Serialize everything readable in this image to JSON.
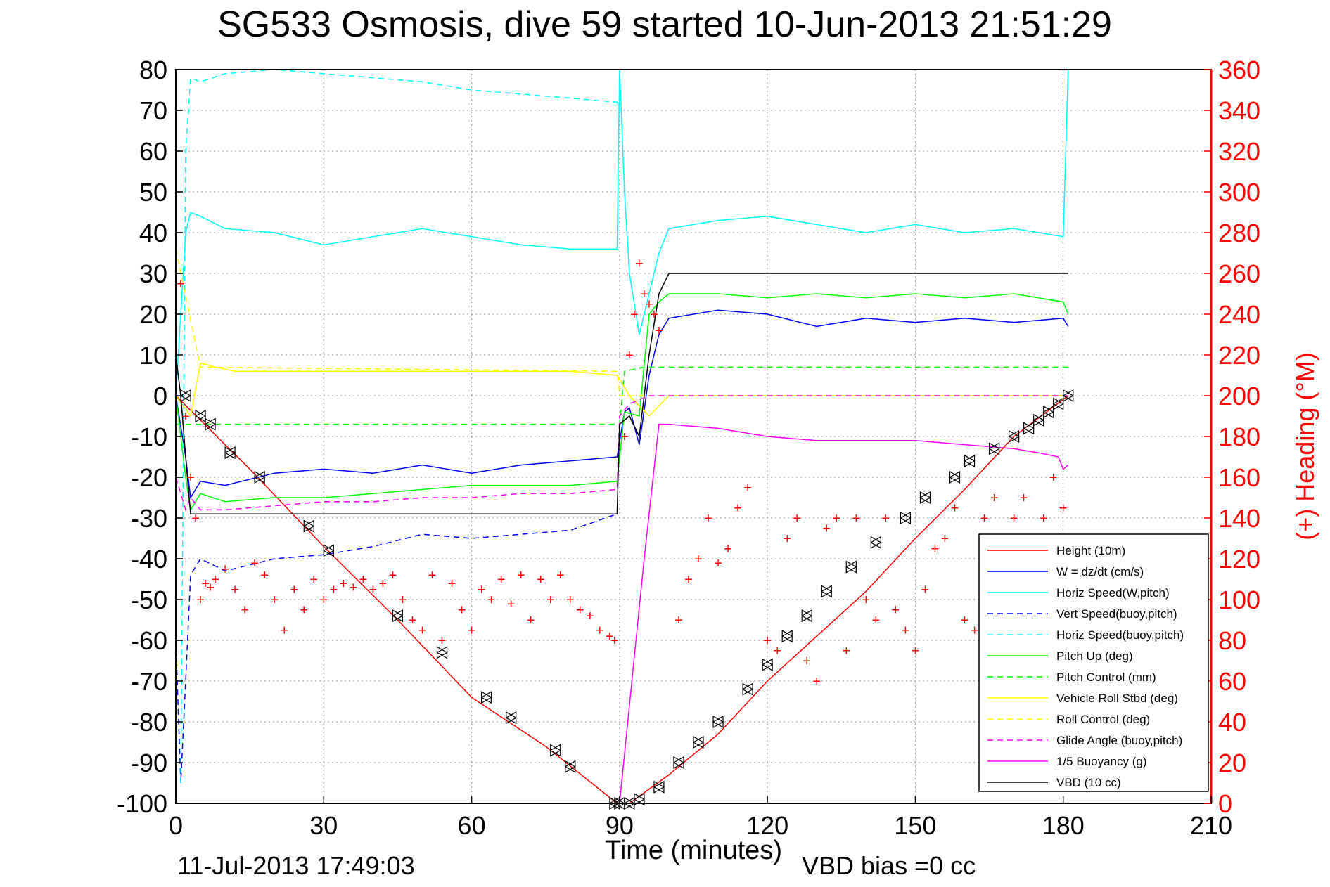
{
  "chart_data": {
    "type": "line",
    "title": "SG533 Osmosis, dive 59 started 10-Jun-2013 21:51:29",
    "xlabel": "Time (minutes)",
    "ylabel_right": "(+) Heading (°M)",
    "footer_left": "11-Jul-2013 17:49:03",
    "footer_right": "VBD bias =0 cc",
    "xlim": [
      0,
      210
    ],
    "ylim": [
      -100,
      80
    ],
    "y2lim": [
      0,
      360
    ],
    "xticks": [
      "0",
      "30",
      "60",
      "90",
      "120",
      "150",
      "180",
      "210"
    ],
    "yticks": [
      "80",
      "70",
      "60",
      "50",
      "40",
      "30",
      "20",
      "10",
      "0",
      "-10",
      "-20",
      "-30",
      "-40",
      "-50",
      "-60",
      "-70",
      "-80",
      "-90",
      "-100"
    ],
    "y2ticks": [
      "360",
      "340",
      "320",
      "300",
      "280",
      "260",
      "240",
      "220",
      "200",
      "180",
      "160",
      "140",
      "120",
      "100",
      "80",
      "60",
      "40",
      "20",
      "0"
    ],
    "grid": true,
    "legend_position": "bottom-right",
    "colors": {
      "height": "#ff0000",
      "w": "#0000ff",
      "horiz": "#00ffff",
      "pitch": "#00ff00",
      "roll": "#ffff00",
      "glide": "#ff00ff",
      "vbd": "#000000",
      "heading_axis": "#ff0000"
    },
    "series": [
      {
        "name": "Height (10m)",
        "style": "solid",
        "color": "#ff0000",
        "x": [
          0,
          15,
          30,
          45,
          60,
          75,
          89.5,
          92,
          100,
          110,
          120,
          130,
          140,
          150,
          160,
          170,
          181
        ],
        "y": [
          0,
          -18,
          -37,
          -55,
          -74,
          -86,
          -100,
          -100,
          -93,
          -83,
          -70,
          -59,
          -48,
          -35,
          -23,
          -10,
          0
        ]
      },
      {
        "name": "W = dz/dt (cm/s)",
        "style": "solid",
        "color": "#0000ff",
        "x": [
          0,
          2,
          3,
          5,
          10,
          20,
          30,
          40,
          50,
          60,
          70,
          80,
          89.5,
          91,
          92,
          94,
          96,
          98,
          100,
          110,
          120,
          130,
          140,
          150,
          160,
          170,
          180,
          181
        ],
        "y": [
          0,
          -15,
          -25,
          -21,
          -22,
          -19,
          -18,
          -19,
          -17,
          -19,
          -17,
          -16,
          -15,
          -4,
          -3,
          -12,
          5,
          15,
          19,
          21,
          20,
          17,
          19,
          18,
          19,
          18,
          19,
          17
        ]
      },
      {
        "name": "Horiz Speed(W,pitch)",
        "style": "solid",
        "color": "#00ffff",
        "x": [
          0,
          2,
          3,
          5,
          10,
          20,
          30,
          40,
          50,
          60,
          70,
          80,
          89.5,
          90,
          91,
          92,
          94,
          96,
          98,
          100,
          110,
          120,
          130,
          140,
          150,
          160,
          170,
          180,
          181
        ],
        "y": [
          0,
          40,
          45,
          44,
          41,
          40,
          37,
          39,
          41,
          39,
          37,
          36,
          36,
          80,
          50,
          30,
          15,
          25,
          35,
          41,
          43,
          44,
          42,
          40,
          42,
          40,
          41,
          39,
          80
        ]
      },
      {
        "name": "Vert Speed(buoy,pitch)",
        "style": "dashed",
        "color": "#0000ff",
        "x": [
          0,
          1,
          2,
          3,
          5,
          10,
          20,
          30,
          40,
          50,
          60,
          70,
          80,
          89.5
        ],
        "y": [
          -60,
          -95,
          -70,
          -44,
          -40,
          -43,
          -40,
          -39,
          -37,
          -34,
          -35,
          -34,
          -33,
          -29
        ]
      },
      {
        "name": "Horiz Speed(buoy,pitch)",
        "style": "dashed",
        "color": "#00ffff",
        "x": [
          1,
          2,
          3,
          5,
          10,
          20,
          30,
          40,
          50,
          60,
          70,
          80,
          89.5,
          90
        ],
        "y": [
          -95,
          60,
          78,
          77,
          79,
          80,
          79,
          78,
          77,
          75,
          74,
          73,
          72,
          70
        ]
      },
      {
        "name": "Pitch Up (deg)",
        "style": "solid",
        "color": "#00ff00",
        "x": [
          0,
          2,
          3,
          5,
          10,
          20,
          30,
          40,
          50,
          60,
          70,
          80,
          89.5,
          91,
          94,
          96,
          98,
          100,
          110,
          120,
          130,
          140,
          150,
          160,
          170,
          180,
          181
        ],
        "y": [
          0,
          -20,
          -28,
          -24,
          -26,
          -25,
          -25,
          -24,
          -23,
          -22,
          -22,
          -22,
          -21,
          -4,
          -5,
          20,
          23,
          25,
          25,
          24,
          25,
          24,
          25,
          24,
          25,
          23,
          20
        ]
      },
      {
        "name": "Pitch Control (mm)",
        "style": "dashed",
        "color": "#00ff00",
        "x": [
          0,
          5,
          90,
          91,
          95,
          100,
          150,
          181
        ],
        "y": [
          -7,
          -7,
          -7,
          6,
          7,
          7,
          7,
          7
        ]
      },
      {
        "name": "Vehicle Roll Stbd (deg)",
        "style": "solid",
        "color": "#ffff00",
        "x": [
          0,
          3,
          5,
          8,
          12,
          17,
          28,
          31,
          45,
          50,
          60,
          70,
          80,
          89.5,
          92,
          96,
          100,
          120,
          150,
          181
        ],
        "y": [
          0,
          -5,
          8,
          7,
          6,
          6,
          6,
          6,
          6,
          6,
          6,
          6,
          6,
          5,
          0,
          -5,
          0,
          0,
          0,
          0
        ]
      },
      {
        "name": "Roll Control (deg)",
        "style": "dashed",
        "color": "#ffff00",
        "x": [
          0,
          5,
          89.5,
          90,
          181
        ],
        "y": [
          36,
          7,
          6,
          0,
          0
        ]
      },
      {
        "name": "Glide Angle (buoy,pitch)",
        "style": "dashed",
        "color": "#ff00ff",
        "x": [
          0,
          2,
          3,
          5,
          10,
          20,
          30,
          40,
          50,
          60,
          70,
          80,
          89.5,
          90,
          92,
          96,
          100,
          150,
          181
        ],
        "y": [
          -20,
          -28,
          -25,
          -28,
          -28,
          -27,
          -26,
          -26,
          -25,
          -25,
          -24,
          -24,
          -23,
          -5,
          -2,
          0,
          0,
          0,
          0
        ]
      },
      {
        "name": "1/5 Buoyancy (g)",
        "style": "solid",
        "color": "#ff00ff",
        "x": [
          90,
          95,
          98,
          100,
          110,
          120,
          130,
          140,
          150,
          160,
          170,
          175,
          179,
          180,
          181
        ],
        "y": [
          -100,
          -40,
          -7,
          -7,
          -8,
          -10,
          -11,
          -11,
          -11,
          -12,
          -13,
          -14,
          -15,
          -18,
          -17
        ]
      },
      {
        "name": "VBD (10 cc)",
        "style": "solid",
        "color": "#000000",
        "x": [
          0,
          1,
          2,
          3,
          5,
          89.5,
          90,
          92,
          94,
          96,
          98,
          100,
          150,
          181
        ],
        "y": [
          10,
          0,
          -15,
          -29,
          -29,
          -29,
          -7,
          -5,
          -10,
          10,
          25,
          30,
          30,
          30
        ]
      }
    ],
    "heading_plus": {
      "axis": "right",
      "marker": "+",
      "color": "#ff0000",
      "x": [
        1,
        2,
        3,
        4,
        5,
        6,
        7,
        8,
        10,
        12,
        14,
        16,
        18,
        20,
        22,
        24,
        26,
        28,
        30,
        32,
        34,
        36,
        38,
        40,
        42,
        44,
        46,
        48,
        50,
        52,
        54,
        56,
        58,
        60,
        62,
        64,
        66,
        68,
        70,
        72,
        74,
        76,
        78,
        80,
        82,
        84,
        86,
        88,
        89,
        91,
        92,
        93,
        94,
        95,
        96,
        97,
        98,
        102,
        104,
        106,
        108,
        110,
        112,
        114,
        116,
        120,
        122,
        124,
        126,
        128,
        130,
        132,
        134,
        136,
        138,
        140,
        142,
        144,
        146,
        148,
        150,
        152,
        154,
        156,
        158,
        160,
        162,
        164,
        166,
        168,
        170,
        172,
        174,
        176,
        178,
        180
      ],
      "y": [
        255,
        190,
        160,
        140,
        100,
        108,
        106,
        110,
        115,
        105,
        95,
        118,
        112,
        100,
        85,
        105,
        95,
        110,
        100,
        105,
        108,
        106,
        110,
        105,
        108,
        112,
        100,
        90,
        85,
        112,
        80,
        108,
        95,
        85,
        105,
        100,
        110,
        98,
        112,
        90,
        110,
        100,
        112,
        100,
        95,
        92,
        85,
        82,
        80,
        180,
        220,
        240,
        265,
        250,
        245,
        240,
        232,
        90,
        110,
        120,
        140,
        118,
        125,
        145,
        155,
        80,
        75,
        130,
        140,
        70,
        60,
        135,
        140,
        75,
        140,
        100,
        90,
        140,
        95,
        85,
        75,
        105,
        125,
        130,
        145,
        90,
        85,
        140,
        150,
        80,
        140,
        150,
        100,
        140,
        160,
        145
      ]
    },
    "height_markers": {
      "x": [
        2,
        5,
        7,
        11,
        17,
        27,
        31,
        45,
        54,
        63,
        68,
        77,
        80,
        89,
        90,
        92,
        94,
        98,
        102,
        106,
        110,
        116,
        120,
        124,
        128,
        132,
        137,
        142,
        148,
        152,
        158,
        161,
        166,
        170,
        173,
        175,
        177,
        179,
        181
      ],
      "y": [
        0,
        -5,
        -7,
        -14,
        -20,
        -32,
        -38,
        -54,
        -63,
        -74,
        -79,
        -87,
        -91,
        -100,
        -100,
        -100,
        -99,
        -96,
        -90,
        -85,
        -80,
        -72,
        -66,
        -59,
        -54,
        -48,
        -42,
        -36,
        -30,
        -25,
        -20,
        -16,
        -13,
        -10,
        -8,
        -6,
        -4,
        -2,
        0
      ]
    },
    "legend": [
      {
        "label": "Height (10m)",
        "color": "#ff0000",
        "style": "solid"
      },
      {
        "label": "W = dz/dt (cm/s)",
        "color": "#0000ff",
        "style": "solid"
      },
      {
        "label": "Horiz Speed(W,pitch)",
        "color": "#00ffff",
        "style": "solid"
      },
      {
        "label": "Vert Speed(buoy,pitch)",
        "color": "#0000ff",
        "style": "dashed"
      },
      {
        "label": "Horiz Speed(buoy,pitch)",
        "color": "#00ffff",
        "style": "dashed"
      },
      {
        "label": "Pitch Up (deg)",
        "color": "#00ff00",
        "style": "solid"
      },
      {
        "label": "Pitch Control (mm)",
        "color": "#00ff00",
        "style": "dashed"
      },
      {
        "label": "Vehicle Roll Stbd (deg)",
        "color": "#ffff00",
        "style": "solid"
      },
      {
        "label": "Roll Control (deg)",
        "color": "#ffff00",
        "style": "dashed"
      },
      {
        "label": "Glide Angle (buoy,pitch)",
        "color": "#ff00ff",
        "style": "dashed"
      },
      {
        "label": "1/5 Buoyancy (g)",
        "color": "#ff00ff",
        "style": "solid"
      },
      {
        "label": "VBD (10 cc)",
        "color": "#000000",
        "style": "solid"
      }
    ]
  }
}
